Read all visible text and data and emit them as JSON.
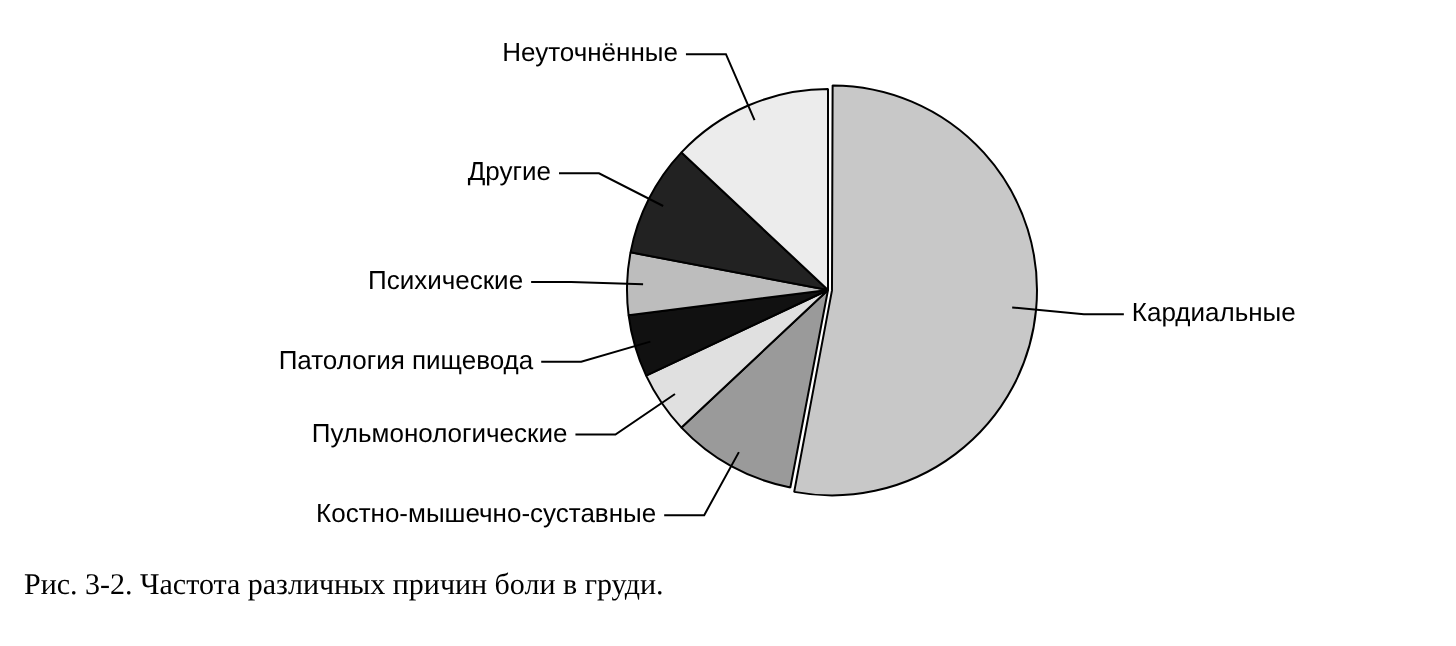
{
  "chart_data": {
    "type": "pie",
    "categories": [
      "Кардиальные",
      "Костно-мышечно-суставные",
      "Пульмонологические",
      "Патология пищевода",
      "Психические",
      "Другие",
      "Неуточнённые"
    ],
    "values": [
      53,
      10,
      5,
      5,
      5,
      9,
      13
    ],
    "colors": [
      "#c8c8c8",
      "#9a9a9a",
      "#e0e0e0",
      "#111111",
      "#bdbdbd",
      "#222222",
      "#ececec"
    ],
    "legend": false,
    "annotations": [
      "Рис. 3-2. Частота различных причин боли в груди."
    ]
  }
}
